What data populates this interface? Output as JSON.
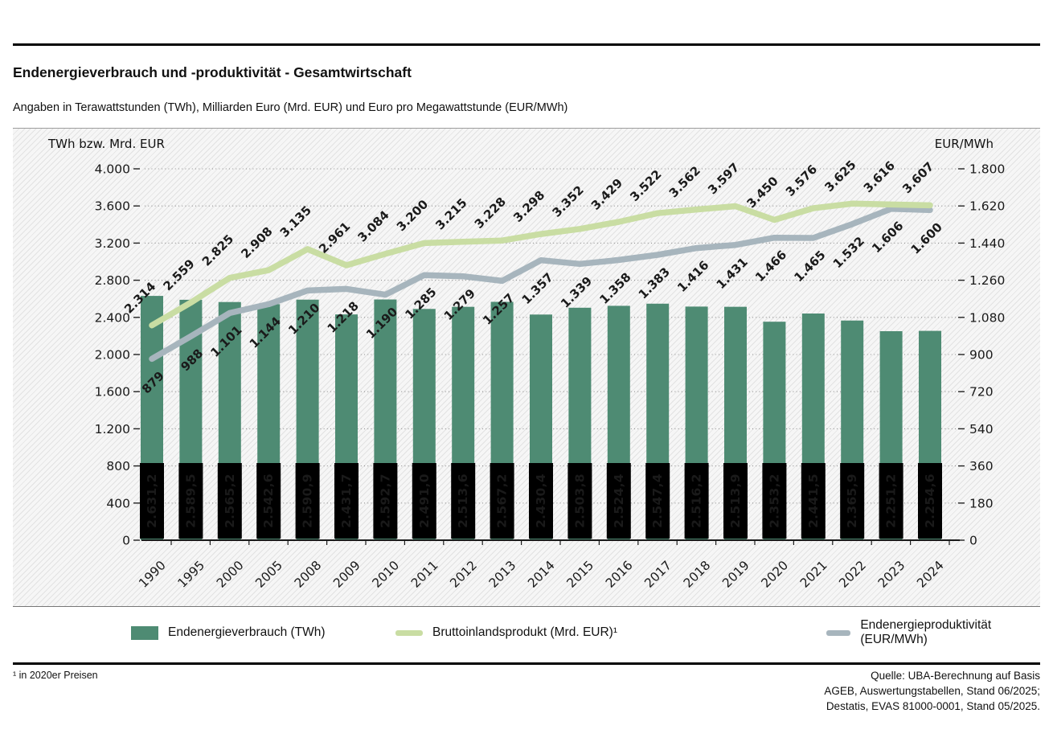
{
  "header": {
    "title": "Endenergieverbrauch und -produktivität - Gesamtwirtschaft",
    "subtitle": "Angaben in Terawattstunden (TWh), Milliarden Euro (Mrd. EUR) und Euro pro Megawattstunde (EUR/MWh)"
  },
  "chart_data": {
    "type": "bar",
    "title": "Endenergieverbrauch und -produktivität - Gesamtwirtschaft",
    "grid": true,
    "legend_position": "bottom",
    "categories": [
      "1990",
      "1995",
      "2000",
      "2005",
      "2008",
      "2009",
      "2010",
      "2011",
      "2012",
      "2013",
      "2014",
      "2015",
      "2016",
      "2017",
      "2018",
      "2019",
      "2020",
      "2021",
      "2022",
      "2023",
      "2024"
    ],
    "axes": {
      "left": {
        "label": "TWh bzw. Mrd. EUR",
        "max": 4000,
        "ticks": [
          "0",
          "400",
          "800",
          "1.200",
          "1.600",
          "2.000",
          "2.400",
          "2.800",
          "3.200",
          "3.600",
          "4.000"
        ]
      },
      "right": {
        "label": "EUR/MWh",
        "max": 1800,
        "ticks": [
          "0",
          "180",
          "360",
          "540",
          "720",
          "900",
          "1.080",
          "1.260",
          "1.440",
          "1.620",
          "1.800"
        ]
      }
    },
    "series": [
      {
        "name": "Endenergieverbrauch (TWh)",
        "type": "bar",
        "axis": "left",
        "color": "#4e8b73",
        "values": [
          2631.2,
          2589.5,
          2565.2,
          2542.6,
          2590.9,
          2431.7,
          2592.7,
          2491.0,
          2513.6,
          2567.2,
          2430.4,
          2503.8,
          2524.4,
          2547.4,
          2516.2,
          2513.9,
          2353.2,
          2441.5,
          2365.9,
          2251.2,
          2254.6
        ],
        "labels": [
          "2.631,2",
          "2.589,5",
          "2.565,2",
          "2.542,6",
          "2.590,9",
          "2.431,7",
          "2.592,7",
          "2.491,0",
          "2.513,6",
          "2.567,2",
          "2.430,4",
          "2.503,8",
          "2.524,4",
          "2.547,4",
          "2.516,2",
          "2.513,9",
          "2.353,2",
          "2.441,5",
          "2.365,9",
          "2.251,2",
          "2.254,6"
        ]
      },
      {
        "name": "Bruttoinlandsprodukt (Mrd. EUR)¹",
        "type": "line",
        "axis": "left",
        "color": "#c9dda3",
        "values": [
          2314,
          2559,
          2825,
          2908,
          3135,
          2961,
          3084,
          3200,
          3215,
          3228,
          3298,
          3352,
          3429,
          3522,
          3562,
          3597,
          3450,
          3576,
          3625,
          3616,
          3607
        ],
        "labels": [
          "2.314",
          "2.559",
          "2.825",
          "2.908",
          "3.135",
          "2.961",
          "3.084",
          "3.200",
          "3.215",
          "3.228",
          "3.298",
          "3.352",
          "3.429",
          "3.522",
          "3.562",
          "3.597",
          "3.450",
          "3.576",
          "3.625",
          "3.616",
          "3.607"
        ]
      },
      {
        "name": "Endenergieproduktivität (EUR/MWh)",
        "type": "line",
        "axis": "right",
        "color": "#a7b5bd",
        "values": [
          879,
          988,
          1101,
          1144,
          1210,
          1218,
          1190,
          1285,
          1279,
          1257,
          1357,
          1339,
          1358,
          1383,
          1416,
          1431,
          1466,
          1465,
          1532,
          1606,
          1600
        ],
        "labels": [
          "879",
          "988",
          "1.101",
          "1.144",
          "1.210",
          "1.218",
          "1.190",
          "1.285",
          "1.279",
          "1.257",
          "1.357",
          "1.339",
          "1.358",
          "1.383",
          "1.416",
          "1.431",
          "1.466",
          "1.465",
          "1.532",
          "1.606",
          "1.600"
        ]
      }
    ]
  },
  "legend": {
    "items": [
      {
        "label": "Endenergieverbrauch (TWh)",
        "color": "#4e8b73",
        "swatch": "rect"
      },
      {
        "label": "Bruttoinlandsprodukt (Mrd. EUR)¹",
        "color": "#c9dda3",
        "swatch": "line"
      },
      {
        "label": "Endenergieproduktivität (EUR/MWh)",
        "color": "#a7b5bd",
        "swatch": "line"
      }
    ]
  },
  "footer": {
    "footnote": "¹ in 2020er Preisen",
    "source_lines": [
      "Quelle: UBA-Berechnung auf Basis",
      "AGEB, Auswertungstabellen, Stand 06/2025;",
      "Destatis, EVAS 81000-0001, Stand 05/2025."
    ]
  }
}
